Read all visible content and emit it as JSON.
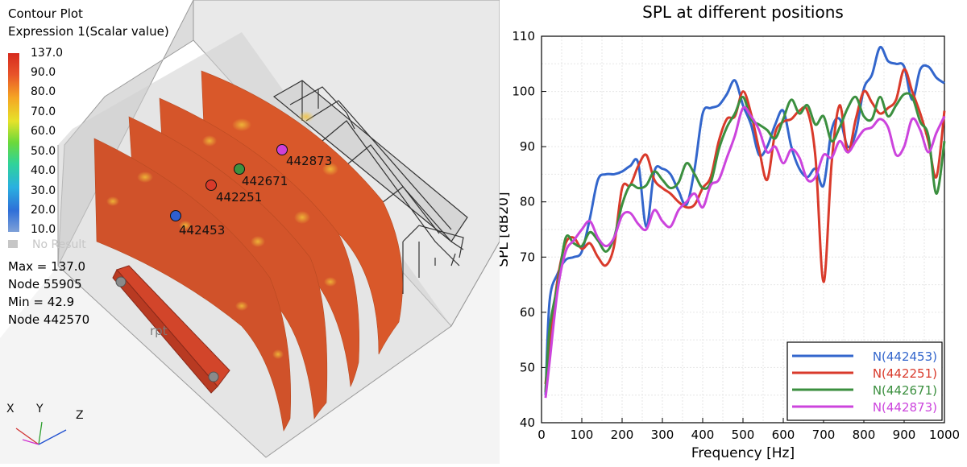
{
  "viewport": {
    "legend": {
      "title": "Contour Plot",
      "subtitle": "Expression 1(Scalar value)",
      "ticks": [
        "137.0",
        "90.0",
        "80.0",
        "70.0",
        "60.0",
        "50.0",
        "40.0",
        "30.0",
        "20.0",
        "10.0"
      ],
      "no_result": "No Result",
      "max": "Max = 137.0",
      "max_node": "Node 55905",
      "min": "Min = 42.9",
      "min_node": "Node 442570"
    },
    "nodes": [
      {
        "label": "442453",
        "color": "#2f5fd0"
      },
      {
        "label": "442251",
        "color": "#d83a2a"
      },
      {
        "label": "442671",
        "color": "#3d9140"
      },
      {
        "label": "442873",
        "color": "#d040d8"
      }
    ],
    "source_label": "rpt",
    "axes": {
      "x": "X",
      "y": "Y",
      "z": "Z"
    }
  },
  "chart_data": {
    "type": "line",
    "title": "SPL at different positions",
    "xlabel": "Frequency [Hz]",
    "ylabel": "SPL [dB20]",
    "xlim": [
      0,
      1000
    ],
    "ylim": [
      40,
      110
    ],
    "xticks": [
      0,
      100,
      200,
      300,
      400,
      500,
      600,
      700,
      800,
      900,
      1000
    ],
    "yticks": [
      40,
      50,
      60,
      70,
      80,
      90,
      100,
      110
    ],
    "grid": true,
    "legend_position": "bottom-right",
    "x": [
      10,
      20,
      40,
      60,
      80,
      100,
      120,
      140,
      160,
      180,
      200,
      220,
      240,
      260,
      280,
      300,
      320,
      340,
      360,
      380,
      400,
      420,
      440,
      460,
      480,
      500,
      520,
      540,
      560,
      580,
      600,
      620,
      640,
      660,
      680,
      700,
      720,
      740,
      760,
      780,
      800,
      820,
      840,
      860,
      880,
      900,
      920,
      940,
      960,
      980,
      1000
    ],
    "series": [
      {
        "name": "N(442453)",
        "color": "#3366cc",
        "values": [
          45,
          62,
          67,
          69.5,
          70,
          71,
          77,
          84,
          85,
          85,
          85.5,
          86.5,
          87,
          75.5,
          85.5,
          86,
          85,
          82,
          79.5,
          86,
          96,
          97,
          97.5,
          99.5,
          102,
          97.5,
          94,
          88.5,
          90,
          94,
          96.5,
          90,
          86,
          84.5,
          86,
          83,
          93,
          95,
          90,
          92.5,
          100.5,
          103,
          108,
          105.5,
          105,
          104.5,
          98.5,
          104,
          104.5,
          102.5,
          101.5
        ]
      },
      {
        "name": "N(442251)",
        "color": "#d93a2b",
        "values": [
          47,
          54,
          66,
          72.5,
          73.5,
          71.5,
          72.5,
          70,
          68.5,
          72,
          82.5,
          83,
          86.5,
          88.5,
          84,
          82.5,
          81.5,
          80,
          79,
          79.5,
          82.5,
          84.5,
          91,
          95,
          95.5,
          100,
          96,
          89.5,
          84,
          92.5,
          94.5,
          95,
          96.5,
          96.5,
          88,
          65.5,
          87,
          97.5,
          89,
          95,
          100,
          98,
          96,
          97,
          98.5,
          104,
          100,
          96,
          91,
          84.5,
          96.5
        ]
      },
      {
        "name": "N(442671)",
        "color": "#3b8f3f",
        "values": [
          45.5,
          57,
          65,
          73.5,
          72.5,
          72,
          74.5,
          73,
          71,
          73.5,
          79.5,
          83,
          82.5,
          83,
          85.5,
          84,
          82.5,
          83.5,
          87,
          85,
          82.5,
          83.5,
          89.5,
          93.5,
          96,
          99,
          95,
          94,
          93,
          91.5,
          95,
          98.5,
          96,
          97.5,
          94,
          95.5,
          91,
          93.5,
          97,
          99,
          95.5,
          95,
          99,
          95.5,
          97.5,
          99.5,
          99,
          94.5,
          92,
          81.5,
          91
        ]
      },
      {
        "name": "N(442873)",
        "color": "#cc44dd",
        "values": [
          44.5,
          51,
          64,
          71,
          73,
          75,
          76.5,
          73.5,
          72,
          73.5,
          77.5,
          78,
          76,
          75,
          78.5,
          76.5,
          75.5,
          78.5,
          80,
          81.5,
          79,
          83,
          84,
          88,
          92,
          97,
          95.5,
          93,
          89,
          90,
          87,
          89.5,
          88,
          84,
          84.5,
          88.5,
          88,
          91,
          89,
          91,
          93,
          93.5,
          95,
          93.5,
          88.5,
          90,
          95,
          93,
          89,
          92.5,
          95.5
        ]
      }
    ]
  }
}
